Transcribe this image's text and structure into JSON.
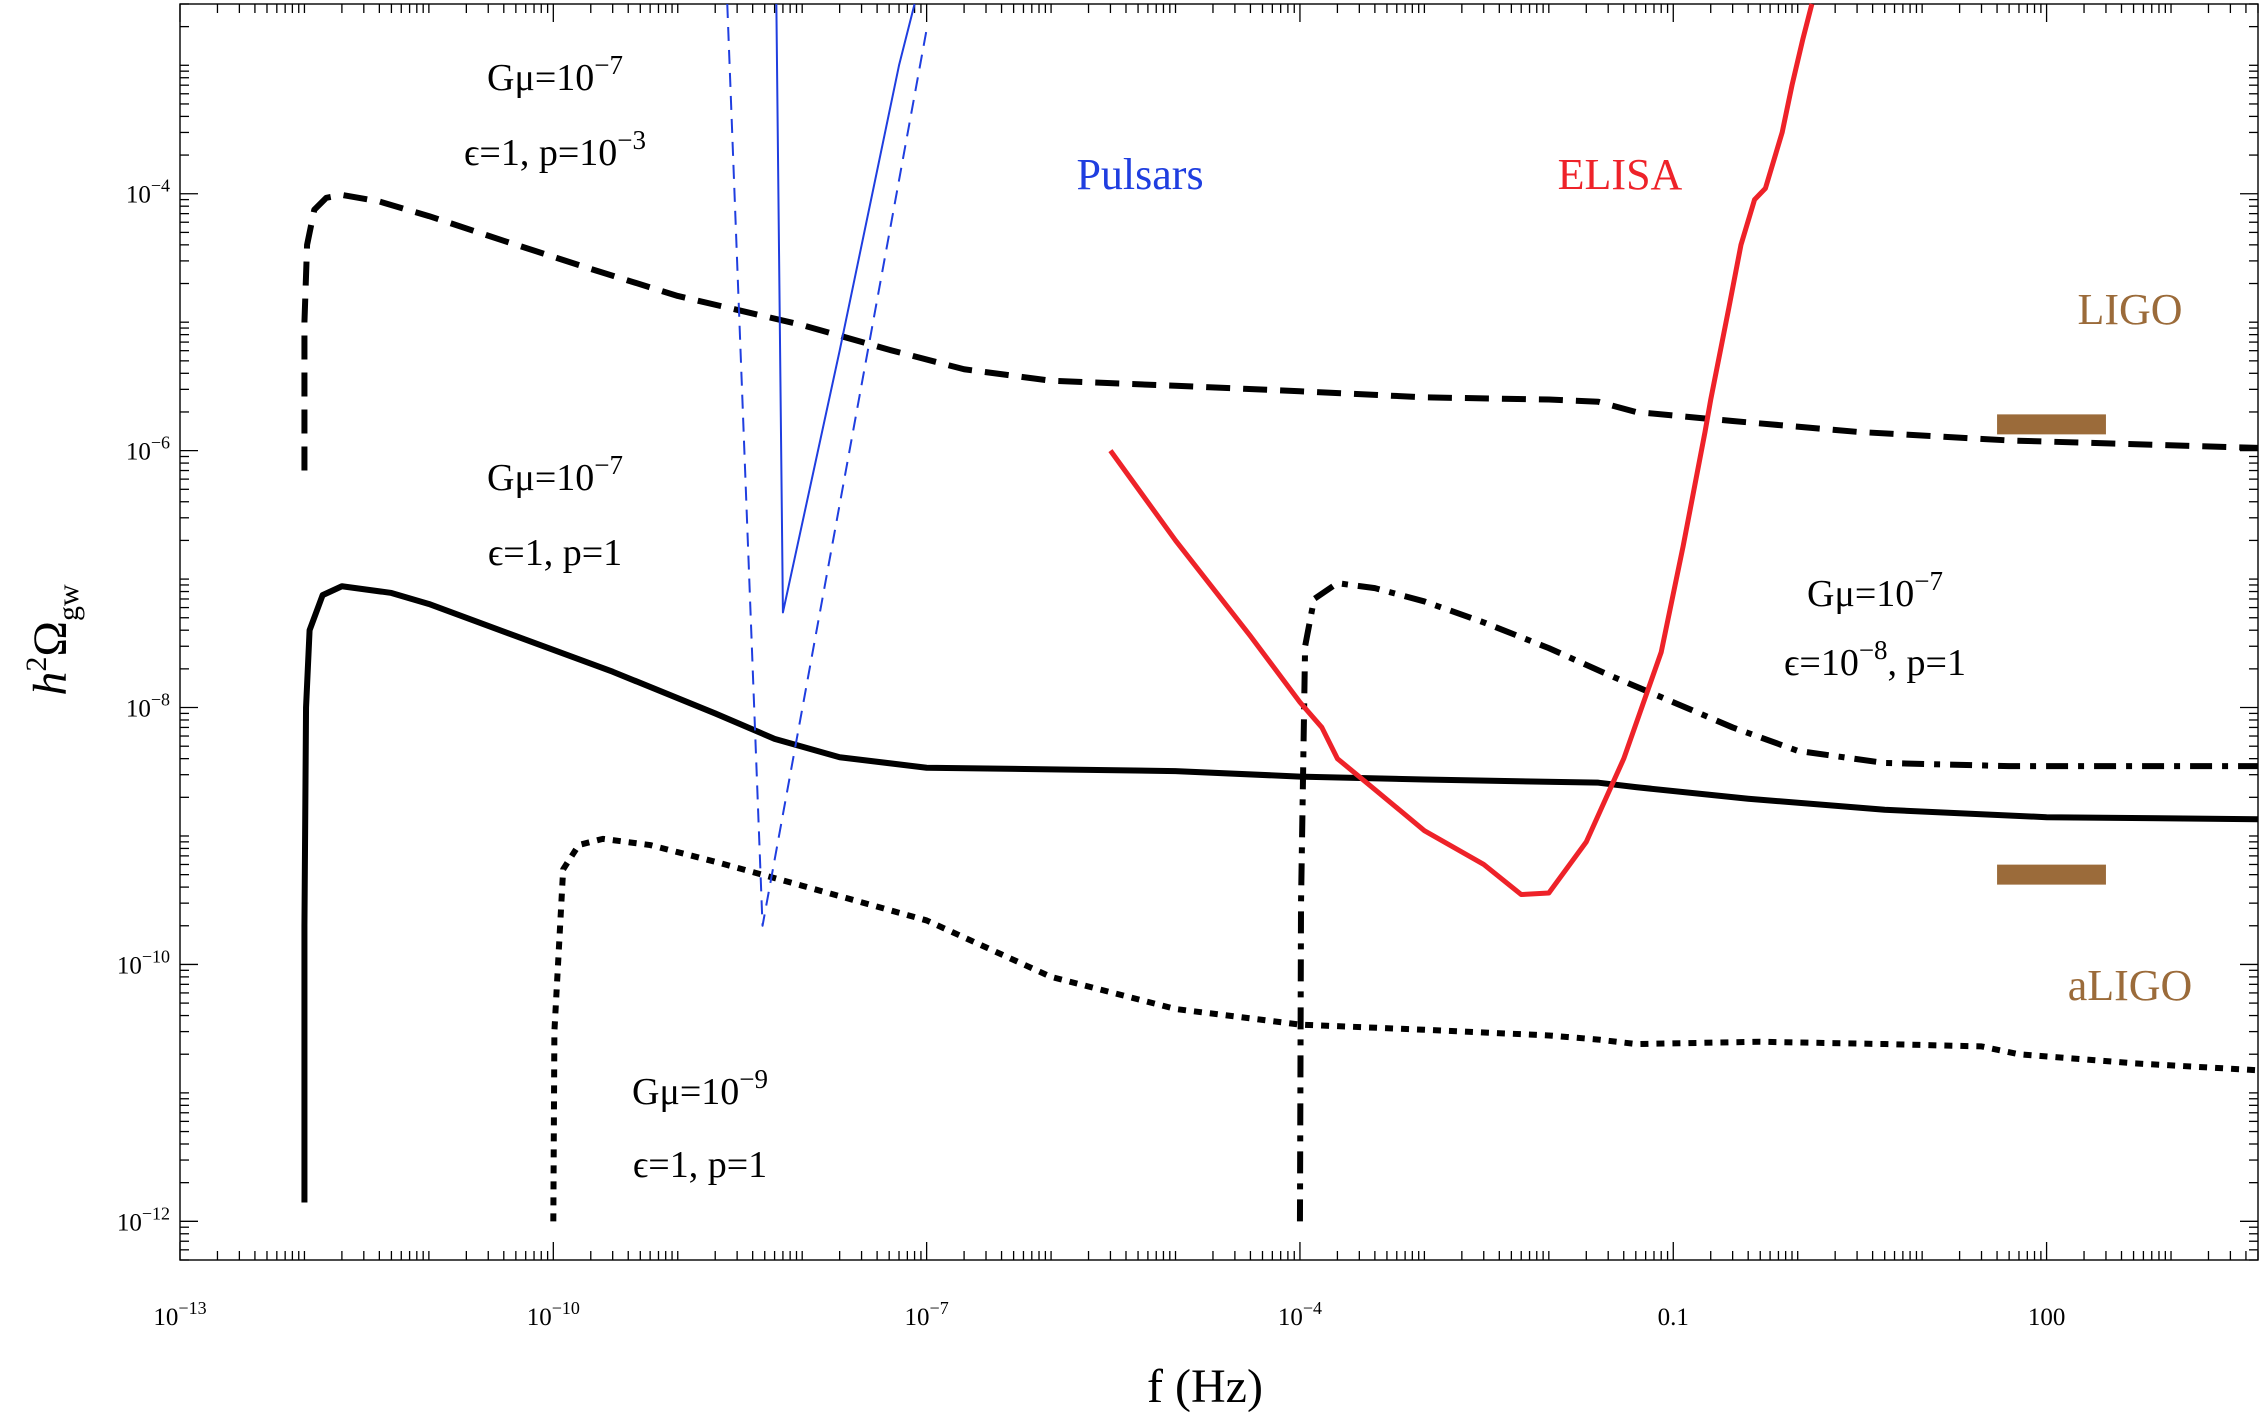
{
  "chart_data": {
    "type": "line",
    "xscale": "log",
    "yscale": "log",
    "xlabel": "f (Hz)",
    "ylabel": "h^2Ωgw",
    "xlim": [
      1e-13,
      5000
    ],
    "ylim": [
      5e-13,
      0.003
    ],
    "x_ticks": [
      {
        "value": 1e-13,
        "label": "10",
        "exp": "−13"
      },
      {
        "value": 1e-10,
        "label": "10",
        "exp": "−10"
      },
      {
        "value": 1e-07,
        "label": "10",
        "exp": "−7"
      },
      {
        "value": 0.0001,
        "label": "10",
        "exp": "−4"
      },
      {
        "value": 0.1,
        "label": "0.1",
        "exp": ""
      },
      {
        "value": 100,
        "label": "100",
        "exp": ""
      }
    ],
    "y_ticks": [
      {
        "value": 0.0001,
        "label": "10",
        "exp": "−4"
      },
      {
        "value": 1e-06,
        "label": "10",
        "exp": "−6"
      },
      {
        "value": 1e-08,
        "label": "10",
        "exp": "−8"
      },
      {
        "value": 1e-10,
        "label": "10",
        "exp": "−10"
      },
      {
        "value": 1e-12,
        "label": "10",
        "exp": "−12"
      }
    ],
    "series": [
      {
        "key": "dashed",
        "style": "dashed",
        "color": "#000000",
        "points": [
          [
            1e-12,
            7e-07
          ],
          [
            1e-12,
            1e-05
          ],
          [
            1.05e-12,
            4e-05
          ],
          [
            1.2e-12,
            7.5e-05
          ],
          [
            1.5e-12,
            9.3e-05
          ],
          [
            2e-12,
            9.8e-05
          ],
          [
            4e-12,
            8.7e-05
          ],
          [
            1e-11,
            6.7e-05
          ],
          [
            4e-11,
            4.3e-05
          ],
          [
            2e-10,
            2.6e-05
          ],
          [
            1e-09,
            1.6e-05
          ],
          [
            1e-08,
            9.5e-06
          ],
          [
            5e-08,
            6.1e-06
          ],
          [
            2e-07,
            4.3e-06
          ],
          [
            1e-06,
            3.5e-06
          ],
          [
            1e-05,
            3.2e-06
          ],
          [
            0.0001,
            2.9e-06
          ],
          [
            0.001,
            2.6e-06
          ],
          [
            0.01,
            2.5e-06
          ],
          [
            0.025,
            2.4e-06
          ],
          [
            0.05,
            2e-06
          ],
          [
            0.3,
            1.7e-06
          ],
          [
            3,
            1.4e-06
          ],
          [
            50,
            1.2e-06
          ],
          [
            5000,
            1.05e-06
          ]
        ]
      },
      {
        "key": "solid",
        "style": "solid",
        "color": "#000000",
        "points": [
          [
            1e-12,
            1.4e-12
          ],
          [
            1e-12,
            2e-10
          ],
          [
            1.03e-12,
            1e-08
          ],
          [
            1.1e-12,
            4e-08
          ],
          [
            1.4e-12,
            7.5e-08
          ],
          [
            2e-12,
            8.8e-08
          ],
          [
            5e-12,
            7.8e-08
          ],
          [
            1e-11,
            6.4e-08
          ],
          [
            5e-11,
            3.6e-08
          ],
          [
            3e-10,
            1.9e-08
          ],
          [
            2e-09,
            9e-09
          ],
          [
            6e-09,
            5.7e-09
          ],
          [
            2e-08,
            4.1e-09
          ],
          [
            1e-07,
            3.4e-09
          ],
          [
            1e-06,
            3.3e-09
          ],
          [
            1e-05,
            3.2e-09
          ],
          [
            0.0001,
            2.9e-09
          ],
          [
            0.001,
            2.75e-09
          ],
          [
            0.025,
            2.6e-09
          ],
          [
            0.05,
            2.4e-09
          ],
          [
            0.4,
            1.95e-09
          ],
          [
            5,
            1.6e-09
          ],
          [
            100,
            1.4e-09
          ],
          [
            5000,
            1.35e-09
          ]
        ]
      },
      {
        "key": "dotted",
        "style": "dotted",
        "color": "#000000",
        "points": [
          [
            1e-10,
            1e-12
          ],
          [
            1.02e-10,
            3e-11
          ],
          [
            1.2e-10,
            5.5e-10
          ],
          [
            1.6e-10,
            8.5e-10
          ],
          [
            2.5e-10,
            9.5e-10
          ],
          [
            6e-10,
            8.5e-10
          ],
          [
            2e-09,
            6.3e-10
          ],
          [
            1e-08,
            4.1e-10
          ],
          [
            1e-07,
            2.2e-10
          ],
          [
            1e-06,
            8e-11
          ],
          [
            1e-05,
            4.5e-11
          ],
          [
            0.0001,
            3.4e-11
          ],
          [
            0.001,
            3.1e-11
          ],
          [
            0.01,
            2.8e-11
          ],
          [
            0.025,
            2.6e-11
          ],
          [
            0.05,
            2.4e-11
          ],
          [
            0.5,
            2.5e-11
          ],
          [
            5,
            2.4e-11
          ],
          [
            30,
            2.3e-11
          ],
          [
            60,
            2e-11
          ],
          [
            500,
            1.7e-11
          ],
          [
            5000,
            1.5e-11
          ]
        ]
      },
      {
        "key": "dashdot",
        "style": "dashdot",
        "color": "#000000",
        "points": [
          [
            0.0001,
            1e-12
          ],
          [
            0.000102,
            3e-10
          ],
          [
            0.00011,
            3e-08
          ],
          [
            0.00013,
            7e-08
          ],
          [
            0.0002,
            9.3e-08
          ],
          [
            0.0004,
            8.5e-08
          ],
          [
            0.001,
            6.7e-08
          ],
          [
            0.003,
            4.6e-08
          ],
          [
            0.01,
            2.9e-08
          ],
          [
            0.03,
            1.8e-08
          ],
          [
            0.1,
            1.1e-08
          ],
          [
            0.3,
            7e-09
          ],
          [
            1,
            4.6e-09
          ],
          [
            5,
            3.7e-09
          ],
          [
            50,
            3.5e-09
          ],
          [
            5000,
            3.5e-09
          ]
        ]
      },
      {
        "key": "elisa",
        "style": "solid",
        "color": "#ee2229",
        "points": [
          [
            3e-06,
            1e-06
          ],
          [
            1e-05,
            2e-07
          ],
          [
            4e-05,
            3.6e-08
          ],
          [
            0.0001,
            1.1e-08
          ],
          [
            0.00015,
            7e-09
          ],
          [
            0.0002,
            4e-09
          ],
          [
            0.0004,
            2.3e-09
          ],
          [
            0.001,
            1.1e-09
          ],
          [
            0.003,
            6e-10
          ],
          [
            0.006,
            3.5e-10
          ],
          [
            0.01,
            3.6e-10
          ],
          [
            0.02,
            9e-10
          ],
          [
            0.04,
            4e-09
          ],
          [
            0.08,
            2.7e-08
          ],
          [
            0.12,
            1.8e-07
          ],
          [
            0.18,
            1.4e-06
          ],
          [
            0.2,
            2.5e-06
          ],
          [
            0.28,
            1.3e-05
          ],
          [
            0.35,
            4e-05
          ],
          [
            0.45,
            9e-05
          ],
          [
            0.55,
            0.00011
          ],
          [
            0.75,
            0.0003
          ],
          [
            0.9,
            0.0007
          ],
          [
            1.1,
            0.0016
          ],
          [
            1.3,
            0.003
          ]
        ]
      },
      {
        "key": "pulsar-solid",
        "style": "solid",
        "color": "#1f3ee0",
        "points": [
          [
            6.2e-09,
            0.003
          ],
          [
            7e-09,
            5.5e-08
          ],
          [
            2e-08,
            6e-06
          ],
          [
            6e-08,
            0.001
          ],
          [
            8e-08,
            0.003
          ]
        ]
      },
      {
        "key": "pulsar-dashed",
        "style": "dashed-thin",
        "color": "#1f3ee0",
        "points": [
          [
            2.5e-09,
            0.003
          ],
          [
            4.8e-09,
            2e-10
          ],
          [
            1e-07,
            0.0019
          ]
        ]
      },
      {
        "key": "ligo",
        "style": "bar",
        "color": "#9b6b3a",
        "points": [
          [
            40,
            1.6e-06
          ],
          [
            300,
            1.6e-06
          ]
        ]
      },
      {
        "key": "aligo",
        "style": "bar",
        "color": "#9b6b3a",
        "points": [
          [
            40,
            5e-10
          ],
          [
            300,
            5e-10
          ]
        ]
      }
    ],
    "annotations": [
      {
        "key": "a1",
        "lines": [
          "Gμ=10^−7",
          "ϵ=1, p=10^−3"
        ]
      },
      {
        "key": "a2",
        "lines": [
          "Gμ=10^−7",
          "ϵ=1, p=1"
        ]
      },
      {
        "key": "a3",
        "lines": [
          "Gμ=10^−9",
          "ϵ=1, p=1"
        ]
      },
      {
        "key": "a4",
        "lines": [
          "Gμ=10^−7",
          "ϵ=10^−8, p=1"
        ]
      }
    ],
    "detector_labels": [
      {
        "key": "pulsars",
        "text": "Pulsars",
        "color": "#1f3ee0"
      },
      {
        "key": "elisa",
        "text": "ELISA",
        "color": "#ee2229"
      },
      {
        "key": "ligo",
        "text": "LIGO",
        "color": "#9b6b3a"
      },
      {
        "key": "aligo",
        "text": "aLIGO",
        "color": "#9b6b3a"
      }
    ]
  }
}
